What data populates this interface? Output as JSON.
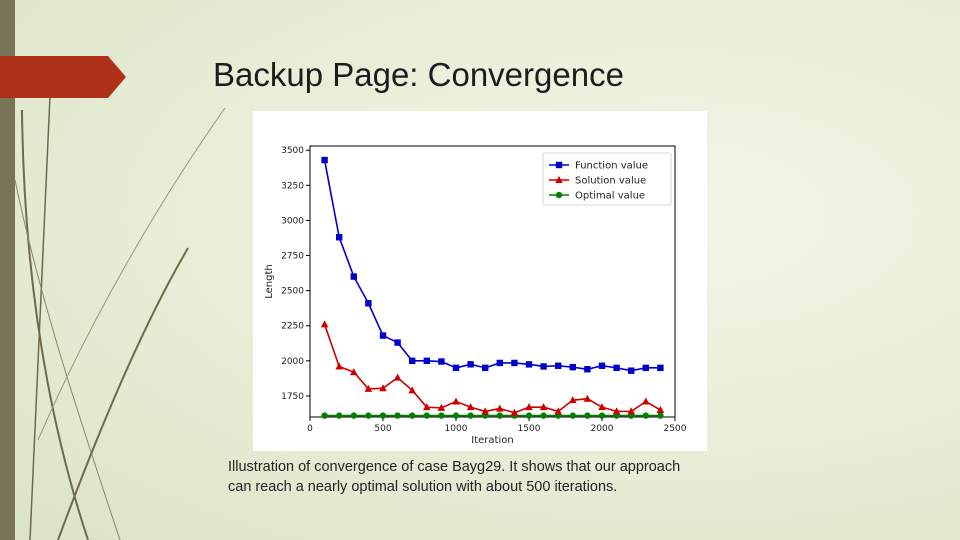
{
  "slide": {
    "title": "Backup Page: Convergence",
    "caption_line1": "Illustration of convergence of case Bayg29. It shows that our approach",
    "caption_line2": "can reach a nearly optimal solution with about 500 iterations.",
    "accent_color": "#b0311a",
    "sidebar_color": "#7a7456"
  },
  "chart_data": {
    "type": "line",
    "title": "",
    "xlabel": "Iteration",
    "ylabel": "Length",
    "xlim": [
      0,
      2500
    ],
    "ylim": [
      1600,
      3530
    ],
    "xticks": [
      0,
      500,
      1000,
      1500,
      2000,
      2500
    ],
    "yticks": [
      1750,
      2000,
      2250,
      2500,
      2750,
      3000,
      3250,
      3500
    ],
    "grid": false,
    "legend_position": "top-right",
    "x": [
      100,
      200,
      300,
      400,
      500,
      600,
      700,
      800,
      900,
      1000,
      1100,
      1200,
      1300,
      1400,
      1500,
      1600,
      1700,
      1800,
      1900,
      2000,
      2100,
      2200,
      2300,
      2400
    ],
    "series": [
      {
        "name": "Function value",
        "color": "#0000cc",
        "marker": "square",
        "values": [
          3430,
          2880,
          2600,
          2410,
          2180,
          2130,
          2000,
          2000,
          1995,
          1950,
          1975,
          1950,
          1985,
          1985,
          1975,
          1960,
          1965,
          1955,
          1940,
          1965,
          1950,
          1930,
          1950,
          1950
        ]
      },
      {
        "name": "Solution value",
        "color": "#cc0000",
        "marker": "triangle",
        "values": [
          2260,
          1960,
          1920,
          1800,
          1805,
          1880,
          1790,
          1670,
          1665,
          1710,
          1670,
          1640,
          1660,
          1630,
          1670,
          1670,
          1640,
          1720,
          1730,
          1670,
          1640,
          1640,
          1710,
          1650
        ]
      },
      {
        "name": "Optimal value",
        "color": "#008000",
        "marker": "circle",
        "values": [
          1610,
          1610,
          1610,
          1610,
          1610,
          1610,
          1610,
          1610,
          1610,
          1610,
          1610,
          1610,
          1610,
          1610,
          1610,
          1610,
          1610,
          1610,
          1610,
          1610,
          1610,
          1610,
          1610,
          1610
        ]
      }
    ]
  }
}
